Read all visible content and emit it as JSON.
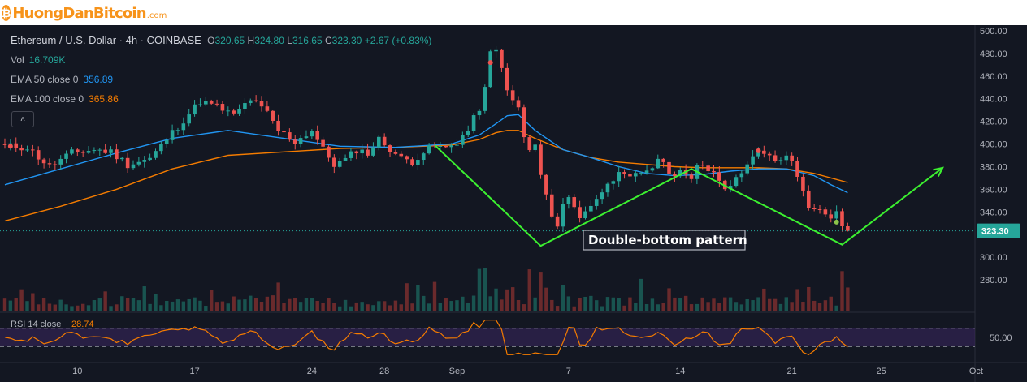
{
  "watermark": {
    "brand": "HuongDanBitcoin",
    "domain": ".com",
    "coin_symbol": "₿"
  },
  "header": {
    "symbol": "Ethereum / U.S. Dollar · 4h · COINBASE",
    "o_label": "O",
    "o": "320.65",
    "h_label": "H",
    "h": "324.80",
    "l_label": "L",
    "l": "316.65",
    "c_label": "C",
    "c": "323.30",
    "change": "+2.67 (+0.83%)"
  },
  "indicators": {
    "vol_label": "Vol",
    "vol_value": "16.709K",
    "ema50_label": "EMA 50 close 0",
    "ema50_value": "356.89",
    "ema100_label": "EMA 100 close 0",
    "ema100_value": "365.86",
    "collapse_icon": "chevron-up-icon"
  },
  "colors": {
    "background": "#131722",
    "up": "#26a69a",
    "down": "#ef5350",
    "ema50": "#2196f3",
    "ema100": "#f57c00",
    "pattern": "#3cf030",
    "rsi": "#f57c00",
    "rsi_band": "#3a2660",
    "axis_text": "#b2b5be"
  },
  "chart_data": {
    "type": "candlestick",
    "title": "Ethereum / U.S. Dollar · 4h · COINBASE",
    "price_axis": {
      "ticks": [
        "500.00",
        "480.00",
        "460.00",
        "440.00",
        "420.00",
        "400.00",
        "380.00",
        "360.00",
        "340.00",
        "320.00",
        "300.00",
        "280.00"
      ],
      "range": [
        280,
        500
      ]
    },
    "x_axis": {
      "ticks": [
        "10",
        "17",
        "24",
        "28",
        "Sep",
        "7",
        "14",
        "21",
        "25",
        "Oct"
      ]
    },
    "last_price": "323.30",
    "price_path": [
      [
        0,
        398
      ],
      [
        4,
        397
      ],
      [
        8,
        380
      ],
      [
        12,
        392
      ],
      [
        16,
        395
      ],
      [
        19,
        393
      ],
      [
        22,
        382
      ],
      [
        26,
        387
      ],
      [
        30,
        410
      ],
      [
        35,
        438
      ],
      [
        38,
        433
      ],
      [
        41,
        425
      ],
      [
        44,
        440
      ],
      [
        47,
        427
      ],
      [
        49,
        412
      ],
      [
        52,
        402
      ],
      [
        55,
        412
      ],
      [
        57,
        395
      ],
      [
        59,
        382
      ],
      [
        61,
        386
      ],
      [
        63,
        395
      ],
      [
        65,
        392
      ],
      [
        67,
        404
      ],
      [
        69,
        396
      ],
      [
        71,
        387
      ],
      [
        73,
        385
      ],
      [
        75,
        393
      ],
      [
        77,
        398
      ],
      [
        79,
        396
      ],
      [
        81,
        402
      ],
      [
        83,
        412
      ],
      [
        85,
        432
      ],
      [
        86,
        448
      ],
      [
        87,
        480
      ],
      [
        88,
        482
      ],
      [
        89,
        470
      ],
      [
        90,
        445
      ],
      [
        91,
        438
      ],
      [
        92,
        432
      ],
      [
        93,
        405
      ],
      [
        94,
        395
      ],
      [
        95,
        398
      ],
      [
        96,
        372
      ],
      [
        97,
        355
      ],
      [
        98,
        333
      ],
      [
        99,
        330
      ],
      [
        100,
        348
      ],
      [
        101,
        352
      ],
      [
        102,
        344
      ],
      [
        103,
        336
      ],
      [
        104,
        342
      ],
      [
        106,
        350
      ],
      [
        108,
        368
      ],
      [
        110,
        372
      ],
      [
        112,
        369
      ],
      [
        114,
        375
      ],
      [
        116,
        380
      ],
      [
        118,
        387
      ],
      [
        119,
        372
      ],
      [
        121,
        378
      ],
      [
        123,
        366
      ],
      [
        124,
        380
      ],
      [
        125,
        382
      ],
      [
        127,
        375
      ],
      [
        129,
        363
      ],
      [
        131,
        368
      ],
      [
        133,
        385
      ],
      [
        135,
        392
      ],
      [
        136,
        390
      ],
      [
        138,
        386
      ],
      [
        140,
        387
      ],
      [
        141,
        386
      ],
      [
        142,
        370
      ],
      [
        143,
        360
      ],
      [
        144,
        346
      ],
      [
        145,
        340
      ],
      [
        146,
        342
      ],
      [
        147,
        340
      ],
      [
        148,
        335
      ],
      [
        149,
        338
      ],
      [
        150,
        325
      ],
      [
        151,
        323.3
      ]
    ],
    "ema50": [
      [
        0,
        364
      ],
      [
        10,
        378
      ],
      [
        20,
        392
      ],
      [
        30,
        405
      ],
      [
        40,
        412
      ],
      [
        50,
        405
      ],
      [
        60,
        398
      ],
      [
        70,
        397
      ],
      [
        80,
        400
      ],
      [
        85,
        408
      ],
      [
        88,
        418
      ],
      [
        90,
        425
      ],
      [
        92,
        426
      ],
      [
        95,
        412
      ],
      [
        100,
        395
      ],
      [
        105,
        388
      ],
      [
        110,
        380
      ],
      [
        115,
        374
      ],
      [
        120,
        372
      ],
      [
        125,
        373
      ],
      [
        130,
        376
      ],
      [
        135,
        378
      ],
      [
        140,
        378
      ],
      [
        145,
        372
      ],
      [
        148,
        364
      ],
      [
        151,
        357
      ]
    ],
    "ema100": [
      [
        0,
        332
      ],
      [
        10,
        345
      ],
      [
        20,
        360
      ],
      [
        30,
        378
      ],
      [
        40,
        390
      ],
      [
        50,
        393
      ],
      [
        60,
        396
      ],
      [
        70,
        397
      ],
      [
        80,
        399
      ],
      [
        85,
        404
      ],
      [
        88,
        410
      ],
      [
        90,
        412
      ],
      [
        92,
        412
      ],
      [
        95,
        405
      ],
      [
        100,
        395
      ],
      [
        105,
        388
      ],
      [
        110,
        384
      ],
      [
        115,
        382
      ],
      [
        120,
        380
      ],
      [
        125,
        379
      ],
      [
        130,
        379
      ],
      [
        135,
        379
      ],
      [
        140,
        378
      ],
      [
        145,
        374
      ],
      [
        148,
        370
      ],
      [
        151,
        366
      ]
    ],
    "volume": {
      "label": "Vol",
      "last": "16.709K"
    },
    "rsi": {
      "label": "RSI 14 close",
      "value": "28.74",
      "tick": "50.00",
      "bands": [
        30,
        70
      ]
    },
    "markers": [
      {
        "i": 1,
        "price": 398,
        "color": "#ef5350"
      },
      {
        "i": 87,
        "price": 472,
        "color": "#ef5350"
      },
      {
        "i": 135,
        "price": 394,
        "color": "#ef5350"
      },
      {
        "i": 149,
        "price": 331,
        "color": "#8bc34a"
      }
    ],
    "pattern": {
      "label": "Double-bottom pattern",
      "points": [
        [
          77,
          399
        ],
        [
          96,
          310
        ],
        [
          123,
          378
        ],
        [
          150,
          311
        ],
        [
          168,
          379
        ]
      ]
    }
  }
}
